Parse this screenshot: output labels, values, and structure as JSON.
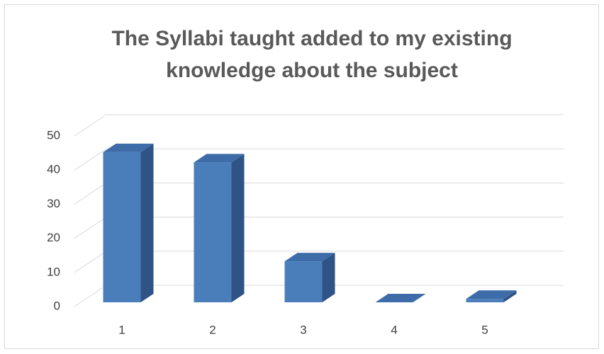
{
  "chart_data": {
    "type": "bar3d",
    "title": "The Syllabi taught added to my existing knowledge about the subject",
    "categories": [
      "1",
      "2",
      "3",
      "4",
      "5"
    ],
    "values": [
      44,
      41,
      12,
      0,
      1
    ],
    "color": "#4a7ebb",
    "ylim": [
      0,
      50
    ],
    "yticks": [
      0,
      10,
      20,
      30,
      40,
      50
    ],
    "grid": true
  }
}
